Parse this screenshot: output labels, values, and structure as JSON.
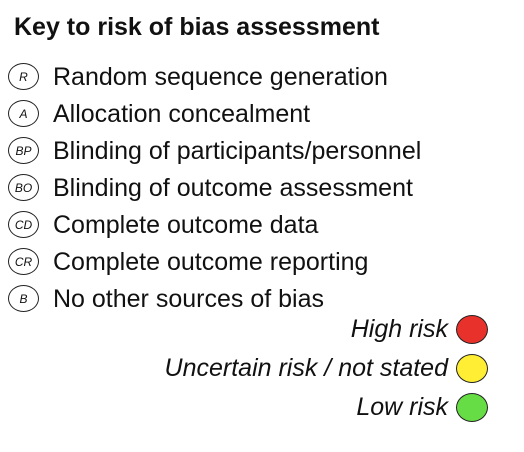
{
  "title": "Key to risk of bias assessment",
  "items": [
    {
      "abbr": "R",
      "label": "Random sequence generation"
    },
    {
      "abbr": "A",
      "label": "Allocation concealment"
    },
    {
      "abbr": "BP",
      "label": "Blinding of participants/personnel"
    },
    {
      "abbr": "BO",
      "label": "Blinding of outcome assessment"
    },
    {
      "abbr": "CD",
      "label": "Complete outcome data"
    },
    {
      "abbr": "CR",
      "label": "Complete outcome reporting"
    },
    {
      "abbr": "B",
      "label": "No other sources of bias"
    }
  ],
  "legend": [
    {
      "label": "High risk",
      "color": "#e8312a"
    },
    {
      "label": "Uncertain risk / not stated",
      "color": "#ffee33"
    },
    {
      "label": "Low risk",
      "color": "#66dd44"
    }
  ]
}
